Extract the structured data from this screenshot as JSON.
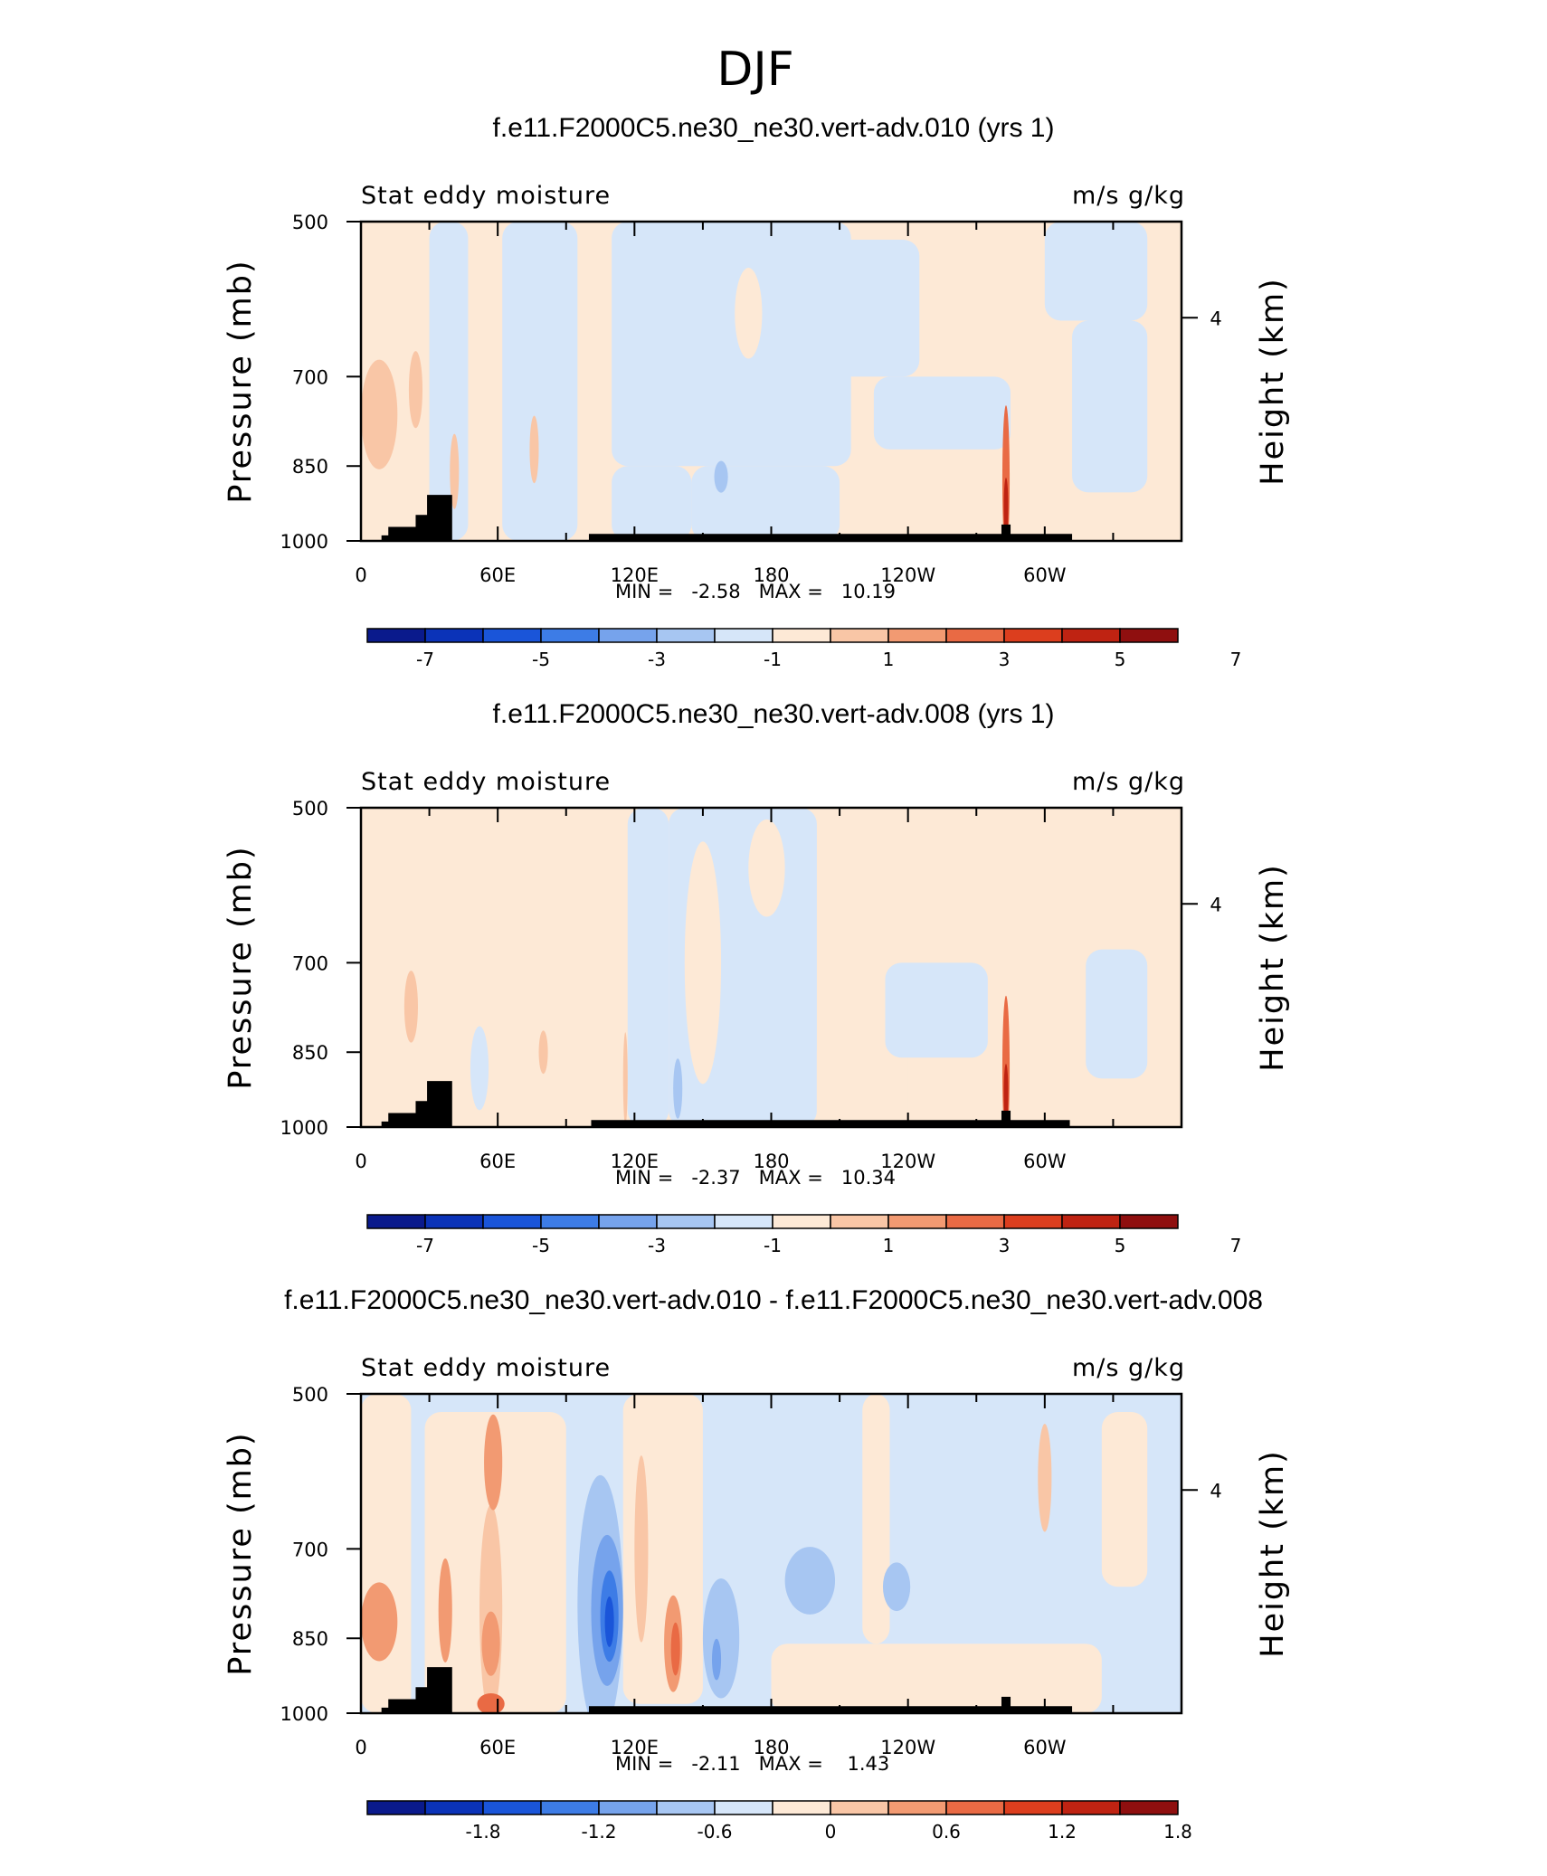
{
  "figure_title": "DJF",
  "chart_data": [
    {
      "type": "heatmap",
      "title": "f.e11.F2000C5.ne30_ne30.vert-adv.010 (yrs 1)",
      "left_label": "Stat eddy moisture",
      "right_label": "m/s g/kg",
      "ylabel": "Pressure (mb)",
      "ylabel_right": "Height (km)",
      "x_ticks": [
        "0",
        "60E",
        "120E",
        "180",
        "120W",
        "60W"
      ],
      "y_ticks": [
        "500",
        "700",
        "850",
        "1000"
      ],
      "y_right_ticks": [
        "4"
      ],
      "xlim": [
        0,
        360
      ],
      "ylim": [
        1000,
        500
      ],
      "stats_text": "MIN =   -2.58   MAX =   10.19",
      "min": -2.58,
      "max": 10.19,
      "colorbar_labels": [
        "-7",
        "-5",
        "-3",
        "-1",
        "1",
        "3",
        "5",
        "7"
      ],
      "colorbar_colors": [
        "#0a1a8c",
        "#0b33b8",
        "#1a55d9",
        "#3d7ce6",
        "#76a3ec",
        "#a7c6f2",
        "#d6e6f9",
        "#fde9d6",
        "#f9c6a6",
        "#f29a72",
        "#e96a44",
        "#dc3e1e",
        "#bf2312",
        "#8f0f0f"
      ],
      "background_color": "#fde9d6",
      "regions": [
        {
          "type": "rect",
          "x0": 30,
          "x1": 47,
          "p0": 500,
          "p1": 1000,
          "color": "#d6e6f9"
        },
        {
          "type": "rect",
          "x0": 62,
          "x1": 95,
          "p0": 500,
          "p1": 1000,
          "color": "#d6e6f9"
        },
        {
          "type": "rect",
          "x0": 110,
          "x1": 215,
          "p0": 500,
          "p1": 850,
          "color": "#d6e6f9"
        },
        {
          "type": "rect",
          "x0": 110,
          "x1": 145,
          "p0": 850,
          "p1": 1000,
          "color": "#d6e6f9"
        },
        {
          "type": "rect",
          "x0": 145,
          "x1": 210,
          "p0": 850,
          "p1": 1000,
          "color": "#d6e6f9"
        },
        {
          "type": "rect",
          "x0": 160,
          "x1": 245,
          "p0": 520,
          "p1": 700,
          "color": "#d6e6f9"
        },
        {
          "type": "rect",
          "x0": 225,
          "x1": 285,
          "p0": 700,
          "p1": 820,
          "color": "#d6e6f9"
        },
        {
          "type": "rect",
          "x0": 300,
          "x1": 345,
          "p0": 500,
          "p1": 620,
          "color": "#d6e6f9"
        },
        {
          "type": "rect",
          "x0": 312,
          "x1": 345,
          "p0": 620,
          "p1": 900,
          "color": "#d6e6f9"
        },
        {
          "type": "ellipse",
          "x": 170,
          "p": 610,
          "rx": 6,
          "rp": 60,
          "color": "#fde9d6"
        },
        {
          "type": "ellipse",
          "x": 158,
          "p": 870,
          "rx": 3,
          "rp": 30,
          "color": "#a7c6f2"
        },
        {
          "type": "ellipse",
          "x": 8,
          "p": 760,
          "rx": 8,
          "rp": 90,
          "color": "#f9c6a6"
        },
        {
          "type": "ellipse",
          "x": 24,
          "p": 720,
          "rx": 3,
          "rp": 60,
          "color": "#f9c6a6"
        },
        {
          "type": "ellipse",
          "x": 41,
          "p": 860,
          "rx": 2,
          "rp": 70,
          "color": "#f9c6a6"
        },
        {
          "type": "ellipse",
          "x": 76,
          "p": 820,
          "rx": 2,
          "rp": 60,
          "color": "#f9c6a6"
        },
        {
          "type": "ellipse",
          "x": 283,
          "p": 875,
          "rx": 1.6,
          "rp": 150,
          "color": "#e96a44"
        },
        {
          "type": "ellipse",
          "x": 283,
          "p": 930,
          "rx": 1.0,
          "rp": 60,
          "color": "#bf2312"
        }
      ],
      "terrain": [
        [
          9,
          988
        ],
        [
          12,
          970
        ],
        [
          24,
          945
        ],
        [
          29,
          905
        ],
        [
          40,
          1000
        ],
        [
          100,
          985
        ],
        [
          144,
          985
        ],
        [
          162,
          985
        ],
        [
          182,
          985
        ],
        [
          281,
          965
        ],
        [
          285,
          985
        ],
        [
          312,
          985
        ]
      ]
    },
    {
      "type": "heatmap",
      "title": "f.e11.F2000C5.ne30_ne30.vert-adv.008 (yrs 1)",
      "left_label": "Stat eddy moisture",
      "right_label": "m/s g/kg",
      "ylabel": "Pressure (mb)",
      "ylabel_right": "Height (km)",
      "x_ticks": [
        "0",
        "60E",
        "120E",
        "180",
        "120W",
        "60W"
      ],
      "y_ticks": [
        "500",
        "700",
        "850",
        "1000"
      ],
      "y_right_ticks": [
        "4"
      ],
      "xlim": [
        0,
        360
      ],
      "ylim": [
        1000,
        500
      ],
      "stats_text": "MIN =   -2.37   MAX =   10.34",
      "min": -2.37,
      "max": 10.34,
      "colorbar_labels": [
        "-7",
        "-5",
        "-3",
        "-1",
        "1",
        "3",
        "5",
        "7"
      ],
      "colorbar_colors": [
        "#0a1a8c",
        "#0b33b8",
        "#1a55d9",
        "#3d7ce6",
        "#76a3ec",
        "#a7c6f2",
        "#d6e6f9",
        "#fde9d6",
        "#f9c6a6",
        "#f29a72",
        "#e96a44",
        "#dc3e1e",
        "#bf2312",
        "#8f0f0f"
      ],
      "background_color": "#fde9d6",
      "regions": [
        {
          "type": "rect",
          "x0": 117,
          "x1": 135,
          "p0": 500,
          "p1": 1000,
          "color": "#d6e6f9"
        },
        {
          "type": "rect",
          "x0": 135,
          "x1": 200,
          "p0": 500,
          "p1": 1000,
          "color": "#d6e6f9"
        },
        {
          "type": "rect",
          "x0": 200,
          "x1": 240,
          "p0": 820,
          "p1": 1000,
          "color": "#fde9d6"
        },
        {
          "type": "rect",
          "x0": 230,
          "x1": 275,
          "p0": 700,
          "p1": 860,
          "color": "#d6e6f9"
        },
        {
          "type": "rect",
          "x0": 318,
          "x1": 345,
          "p0": 680,
          "p1": 900,
          "color": "#d6e6f9"
        },
        {
          "type": "ellipse",
          "x": 52,
          "p": 880,
          "rx": 4,
          "rp": 80,
          "color": "#d6e6f9"
        },
        {
          "type": "ellipse",
          "x": 150,
          "p": 700,
          "rx": 8,
          "rp": 180,
          "color": "#fde9d6"
        },
        {
          "type": "ellipse",
          "x": 178,
          "p": 570,
          "rx": 8,
          "rp": 60,
          "color": "#fde9d6"
        },
        {
          "type": "ellipse",
          "x": 139,
          "p": 920,
          "rx": 2,
          "rp": 60,
          "color": "#a7c6f2"
        },
        {
          "type": "ellipse",
          "x": 22,
          "p": 770,
          "rx": 3,
          "rp": 60,
          "color": "#f9c6a6"
        },
        {
          "type": "ellipse",
          "x": 80,
          "p": 850,
          "rx": 2,
          "rp": 40,
          "color": "#f9c6a6"
        },
        {
          "type": "ellipse",
          "x": 116,
          "p": 900,
          "rx": 1,
          "rp": 90,
          "color": "#f9c6a6"
        },
        {
          "type": "ellipse",
          "x": 283,
          "p": 880,
          "rx": 1.6,
          "rp": 150,
          "color": "#e96a44"
        },
        {
          "type": "ellipse",
          "x": 283,
          "p": 930,
          "rx": 1.0,
          "rp": 60,
          "color": "#bf2312"
        }
      ],
      "terrain": [
        [
          9,
          988
        ],
        [
          12,
          970
        ],
        [
          24,
          945
        ],
        [
          29,
          905
        ],
        [
          40,
          1000
        ],
        [
          101,
          985
        ],
        [
          111,
          985
        ],
        [
          120,
          985
        ],
        [
          126,
          985
        ],
        [
          281,
          965
        ],
        [
          285,
          985
        ],
        [
          311,
          985
        ]
      ]
    },
    {
      "type": "heatmap",
      "title": "f.e11.F2000C5.ne30_ne30.vert-adv.010 - f.e11.F2000C5.ne30_ne30.vert-adv.008",
      "left_label": "Stat eddy moisture",
      "right_label": "m/s g/kg",
      "ylabel": "Pressure (mb)",
      "ylabel_right": "Height (km)",
      "x_ticks": [
        "0",
        "60E",
        "120E",
        "180",
        "120W",
        "60W"
      ],
      "y_ticks": [
        "500",
        "700",
        "850",
        "1000"
      ],
      "y_right_ticks": [
        "4"
      ],
      "xlim": [
        0,
        360
      ],
      "ylim": [
        1000,
        500
      ],
      "stats_text": "MIN =   -2.11   MAX =    1.43",
      "min": -2.11,
      "max": 1.43,
      "colorbar_labels": [
        "-1.8",
        "-1.2",
        "-0.6",
        "0",
        "0.6",
        "1.2",
        "1.8"
      ],
      "colorbar_colors": [
        "#0a1a8c",
        "#0b33b8",
        "#1a55d9",
        "#3d7ce6",
        "#76a3ec",
        "#a7c6f2",
        "#d6e6f9",
        "#fde9d6",
        "#f9c6a6",
        "#f29a72",
        "#e96a44",
        "#dc3e1e",
        "#bf2312",
        "#8f0f0f"
      ],
      "background_color": "#d6e6f9",
      "regions": [
        {
          "type": "rect",
          "x0": 0,
          "x1": 22,
          "p0": 500,
          "p1": 1000,
          "color": "#fde9d6"
        },
        {
          "type": "rect",
          "x0": 28,
          "x1": 90,
          "p0": 520,
          "p1": 1000,
          "color": "#fde9d6"
        },
        {
          "type": "rect",
          "x0": 115,
          "x1": 150,
          "p0": 500,
          "p1": 980,
          "color": "#fde9d6"
        },
        {
          "type": "rect",
          "x0": 180,
          "x1": 325,
          "p0": 860,
          "p1": 1000,
          "color": "#fde9d6"
        },
        {
          "type": "rect",
          "x0": 220,
          "x1": 232,
          "p0": 500,
          "p1": 860,
          "color": "#fde9d6"
        },
        {
          "type": "rect",
          "x0": 325,
          "x1": 345,
          "p0": 520,
          "p1": 760,
          "color": "#fde9d6"
        },
        {
          "type": "ellipse",
          "x": 8,
          "p": 820,
          "rx": 8,
          "rp": 70,
          "color": "#f29a72"
        },
        {
          "type": "ellipse",
          "x": 37,
          "p": 800,
          "rx": 3,
          "rp": 90,
          "color": "#f29a72"
        },
        {
          "type": "ellipse",
          "x": 57,
          "p": 800,
          "rx": 5,
          "rp": 180,
          "color": "#f9c6a6"
        },
        {
          "type": "ellipse",
          "x": 58,
          "p": 580,
          "rx": 4,
          "rp": 60,
          "color": "#f29a72"
        },
        {
          "type": "ellipse",
          "x": 57,
          "p": 860,
          "rx": 4,
          "rp": 60,
          "color": "#f29a72"
        },
        {
          "type": "ellipse",
          "x": 57,
          "p": 980,
          "rx": 6,
          "rp": 25,
          "color": "#e96a44"
        },
        {
          "type": "ellipse",
          "x": 105,
          "p": 790,
          "rx": 10,
          "rp": 220,
          "color": "#a7c6f2"
        },
        {
          "type": "ellipse",
          "x": 108,
          "p": 800,
          "rx": 7,
          "rp": 130,
          "color": "#76a3ec"
        },
        {
          "type": "ellipse",
          "x": 109,
          "p": 810,
          "rx": 4,
          "rp": 80,
          "color": "#3d7ce6"
        },
        {
          "type": "ellipse",
          "x": 109,
          "p": 820,
          "rx": 2,
          "rp": 45,
          "color": "#1a55d9"
        },
        {
          "type": "ellipse",
          "x": 123,
          "p": 700,
          "rx": 3,
          "rp": 140,
          "color": "#f9c6a6"
        },
        {
          "type": "ellipse",
          "x": 137,
          "p": 860,
          "rx": 4,
          "rp": 90,
          "color": "#f29a72"
        },
        {
          "type": "ellipse",
          "x": 138,
          "p": 870,
          "rx": 2,
          "rp": 50,
          "color": "#e96a44"
        },
        {
          "type": "ellipse",
          "x": 158,
          "p": 850,
          "rx": 8,
          "rp": 110,
          "color": "#a7c6f2"
        },
        {
          "type": "ellipse",
          "x": 156,
          "p": 890,
          "rx": 2,
          "rp": 40,
          "color": "#76a3ec"
        },
        {
          "type": "ellipse",
          "x": 197,
          "p": 750,
          "rx": 11,
          "rp": 55,
          "color": "#a7c6f2"
        },
        {
          "type": "ellipse",
          "x": 235,
          "p": 760,
          "rx": 6,
          "rp": 40,
          "color": "#a7c6f2"
        },
        {
          "type": "ellipse",
          "x": 300,
          "p": 600,
          "rx": 3,
          "rp": 70,
          "color": "#f9c6a6"
        }
      ],
      "terrain": [
        [
          9,
          988
        ],
        [
          12,
          970
        ],
        [
          24,
          945
        ],
        [
          29,
          905
        ],
        [
          40,
          1000
        ],
        [
          100,
          985
        ],
        [
          144,
          985
        ],
        [
          162,
          985
        ],
        [
          182,
          985
        ],
        [
          281,
          965
        ],
        [
          285,
          985
        ],
        [
          312,
          985
        ]
      ]
    }
  ]
}
